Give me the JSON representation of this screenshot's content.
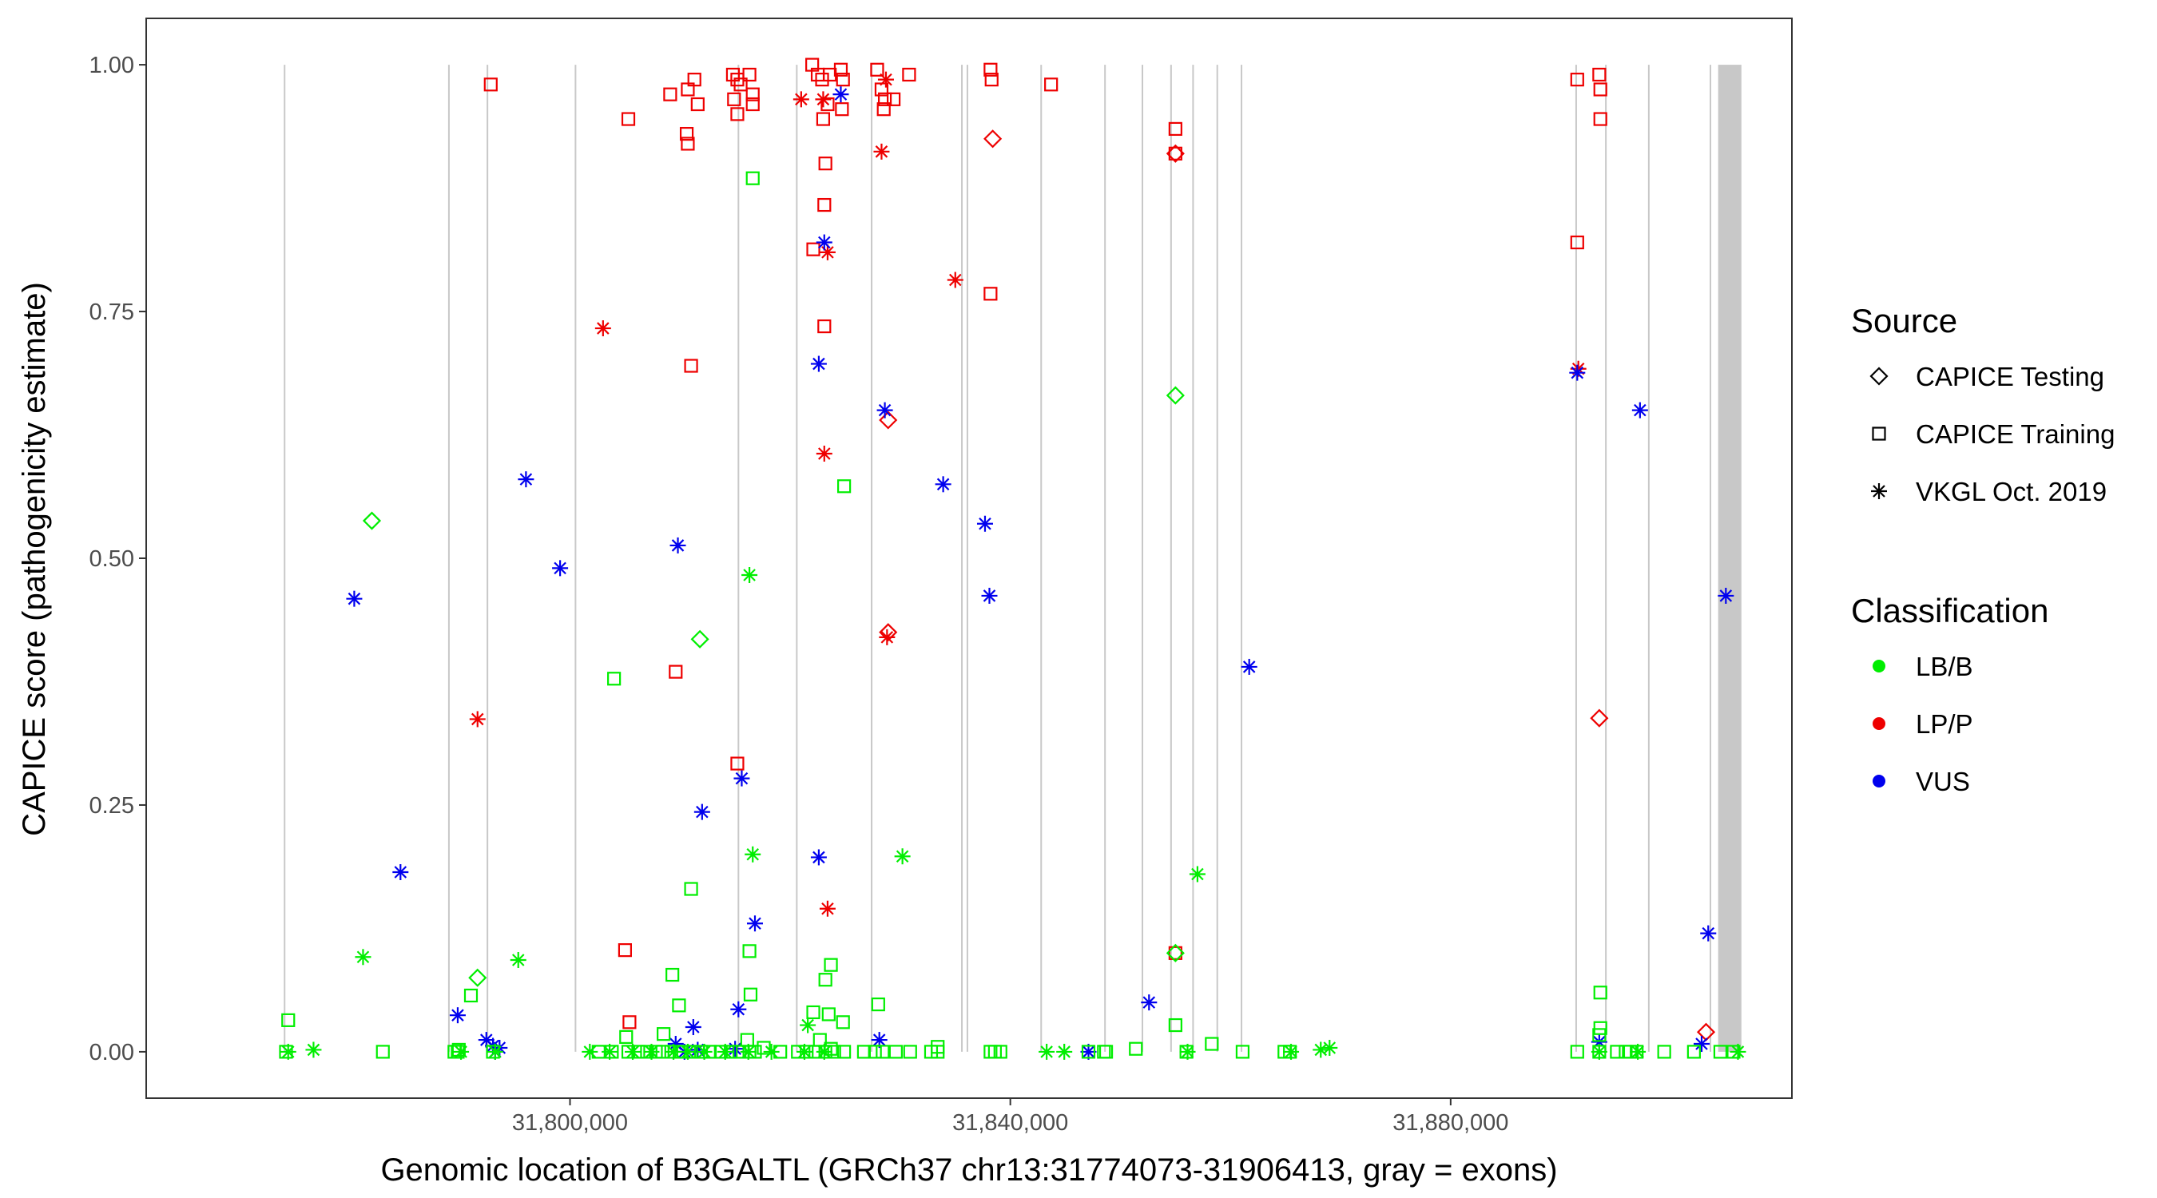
{
  "chart_data": {
    "type": "scatter",
    "xlabel": "Genomic location of B3GALTL (GRCh37 chr13:31774073-31906413, gray = exons)",
    "ylabel": "CAPICE score (pathogenicity estimate)",
    "xlim": [
      31761500,
      31911000
    ],
    "ylim": [
      -0.047,
      1.047
    ],
    "x_ticks": [
      31800000,
      31840000,
      31880000
    ],
    "x_tick_labels": [
      "31,800,000",
      "31,840,000",
      "31,880,000"
    ],
    "y_ticks": [
      0,
      0.25,
      0.5,
      0.75,
      1.0
    ],
    "y_tick_labels": [
      "0.00",
      "0.25",
      "0.50",
      "0.75",
      "1.00"
    ],
    "grid": false,
    "legend_placement": "right",
    "exons": [
      31774073,
      31789000,
      31792500,
      31800500,
      31815300,
      31820600,
      31827400,
      31835600,
      31836100,
      31842800,
      31848600,
      31852000,
      31854600,
      31856600,
      31858800,
      31861000,
      31891400,
      31894100,
      31898000,
      31903600
    ],
    "exon_block": [
      31904300,
      31906413
    ],
    "legends": {
      "source": {
        "title": "Source",
        "entries": [
          {
            "key": "testing",
            "label": "CAPICE Testing",
            "shape": "diamond"
          },
          {
            "key": "training",
            "label": "CAPICE Training",
            "shape": "square"
          },
          {
            "key": "vkgl",
            "label": "VKGL Oct. 2019",
            "shape": "asterisk"
          }
        ]
      },
      "classification": {
        "title": "Classification",
        "entries": [
          {
            "key": "LB/B",
            "label": "LB/B",
            "color": "#00ee00"
          },
          {
            "key": "LP/P",
            "label": "LP/P",
            "color": "#ee0000"
          },
          {
            "key": "VUS",
            "label": "VUS",
            "color": "#0000ee"
          }
        ]
      }
    },
    "series": [
      {
        "source": "training",
        "class": "LP/P",
        "points": [
          [
            31792800,
            0.98
          ],
          [
            31805300,
            0.945
          ],
          [
            31809100,
            0.97
          ],
          [
            31810700,
            0.975
          ],
          [
            31810600,
            0.93
          ],
          [
            31810700,
            0.92
          ],
          [
            31811300,
            0.985
          ],
          [
            31811600,
            0.96
          ],
          [
            31814800,
            0.99
          ],
          [
            31815200,
            0.985
          ],
          [
            31814900,
            0.965
          ],
          [
            31815200,
            0.95
          ],
          [
            31815500,
            0.98
          ],
          [
            31816300,
            0.99
          ],
          [
            31816600,
            0.96
          ],
          [
            31816600,
            0.97
          ],
          [
            31822000,
            1.0
          ],
          [
            31822500,
            0.99
          ],
          [
            31822900,
            0.985
          ],
          [
            31823600,
            0.99
          ],
          [
            31823000,
            0.945
          ],
          [
            31823400,
            0.96
          ],
          [
            31824600,
            0.995
          ],
          [
            31824800,
            0.985
          ],
          [
            31824700,
            0.955
          ],
          [
            31827900,
            0.995
          ],
          [
            31828300,
            0.975
          ],
          [
            31828600,
            0.965
          ],
          [
            31828500,
            0.955
          ],
          [
            31829400,
            0.965
          ],
          [
            31830800,
            0.99
          ],
          [
            31838200,
            0.995
          ],
          [
            31838300,
            0.985
          ],
          [
            31843700,
            0.98
          ],
          [
            31855000,
            0.935
          ],
          [
            31855000,
            0.91
          ],
          [
            31891500,
            0.985
          ],
          [
            31893500,
            0.99
          ],
          [
            31893600,
            0.975
          ],
          [
            31893600,
            0.945
          ],
          [
            31823200,
            0.9
          ],
          [
            31823100,
            0.858
          ],
          [
            31822100,
            0.813
          ],
          [
            31823100,
            0.735
          ],
          [
            31838200,
            0.768
          ],
          [
            31811000,
            0.695
          ],
          [
            31891500,
            0.82
          ],
          [
            31809600,
            0.385
          ],
          [
            31815200,
            0.292
          ],
          [
            31805000,
            0.103
          ],
          [
            31805400,
            0.03
          ],
          [
            31855000,
            0.1
          ]
        ]
      },
      {
        "source": "testing",
        "class": "LP/P",
        "points": [
          [
            31838400,
            0.925
          ],
          [
            31855000,
            0.91
          ],
          [
            31828900,
            0.64
          ],
          [
            31828900,
            0.425
          ],
          [
            31893500,
            0.338
          ],
          [
            31903200,
            0.02
          ]
        ]
      },
      {
        "source": "vkgl",
        "class": "LP/P",
        "points": [
          [
            31821000,
            0.965
          ],
          [
            31823000,
            0.965
          ],
          [
            31828300,
            0.912
          ],
          [
            31828700,
            0.985
          ],
          [
            31823400,
            0.81
          ],
          [
            31835000,
            0.782
          ],
          [
            31803000,
            0.733
          ],
          [
            31823100,
            0.606
          ],
          [
            31828800,
            0.42
          ],
          [
            31791600,
            0.337
          ],
          [
            31823400,
            0.145
          ],
          [
            31891600,
            0.692
          ]
        ]
      },
      {
        "source": "vkgl",
        "class": "VUS",
        "points": [
          [
            31824600,
            0.97
          ],
          [
            31823100,
            0.82
          ],
          [
            31822600,
            0.697
          ],
          [
            31828600,
            0.65
          ],
          [
            31833900,
            0.575
          ],
          [
            31837700,
            0.535
          ],
          [
            31838100,
            0.462
          ],
          [
            31796000,
            0.58
          ],
          [
            31809800,
            0.513
          ],
          [
            31799100,
            0.49
          ],
          [
            31780400,
            0.459
          ],
          [
            31861700,
            0.39
          ],
          [
            31891500,
            0.688
          ],
          [
            31897200,
            0.65
          ],
          [
            31905000,
            0.462
          ],
          [
            31815600,
            0.277
          ],
          [
            31812000,
            0.243
          ],
          [
            31822600,
            0.197
          ],
          [
            31784600,
            0.182
          ],
          [
            31816800,
            0.13
          ],
          [
            31903400,
            0.12
          ],
          [
            31852600,
            0.05
          ],
          [
            31815300,
            0.043
          ],
          [
            31789800,
            0.037
          ],
          [
            31811200,
            0.025
          ],
          [
            31828100,
            0.012
          ],
          [
            31809600,
            0.008
          ],
          [
            31792400,
            0.012
          ],
          [
            31793000,
            0.006
          ],
          [
            31793600,
            0.004
          ],
          [
            31815000,
            0.003
          ],
          [
            31811600,
            0.002
          ],
          [
            31902800,
            0.008
          ],
          [
            31893500,
            0.01
          ],
          [
            31847100,
            0.0
          ],
          [
            31793200,
            0.0
          ],
          [
            31810400,
            0.0
          ]
        ]
      },
      {
        "source": "training",
        "class": "LB/B",
        "points": [
          [
            31816600,
            0.885
          ],
          [
            31824900,
            0.573
          ],
          [
            31804000,
            0.378
          ],
          [
            31811000,
            0.165
          ],
          [
            31816300,
            0.102
          ],
          [
            31823700,
            0.088
          ],
          [
            31809300,
            0.078
          ],
          [
            31823200,
            0.073
          ],
          [
            31791000,
            0.057
          ],
          [
            31816400,
            0.058
          ],
          [
            31893600,
            0.06
          ],
          [
            31809900,
            0.047
          ],
          [
            31828000,
            0.048
          ],
          [
            31822100,
            0.04
          ],
          [
            31774400,
            0.032
          ],
          [
            31823500,
            0.038
          ],
          [
            31824800,
            0.03
          ],
          [
            31855000,
            0.027
          ],
          [
            31893600,
            0.024
          ],
          [
            31893500,
            0.017
          ],
          [
            31808500,
            0.018
          ],
          [
            31816100,
            0.012
          ],
          [
            31805100,
            0.015
          ],
          [
            31822700,
            0.012
          ],
          [
            31858300,
            0.008
          ],
          [
            31817600,
            0.004
          ],
          [
            31823700,
            0.003
          ],
          [
            31833400,
            0.005
          ],
          [
            31851400,
            0.003
          ],
          [
            31774200,
            0.0
          ],
          [
            31783000,
            0.0
          ],
          [
            31789800,
            0.0
          ],
          [
            31789900,
            0.002
          ],
          [
            31789500,
            0.0
          ],
          [
            31793000,
            0.0
          ],
          [
            31802600,
            0.0
          ],
          [
            31803800,
            0.0
          ],
          [
            31805300,
            0.0
          ],
          [
            31806200,
            0.0
          ],
          [
            31807000,
            0.0
          ],
          [
            31807800,
            0.0
          ],
          [
            31808400,
            0.0
          ],
          [
            31809200,
            0.0
          ],
          [
            31810100,
            0.0
          ],
          [
            31811000,
            0.0
          ],
          [
            31811900,
            0.0
          ],
          [
            31812700,
            0.0
          ],
          [
            31813700,
            0.0
          ],
          [
            31814600,
            0.0
          ],
          [
            31815400,
            0.0
          ],
          [
            31816300,
            0.0
          ],
          [
            31816800,
            0.0
          ],
          [
            31819100,
            0.0
          ],
          [
            31820700,
            0.0
          ],
          [
            31821500,
            0.0
          ],
          [
            31822300,
            0.0
          ],
          [
            31823200,
            0.0
          ],
          [
            31824000,
            0.0
          ],
          [
            31824900,
            0.0
          ],
          [
            31826700,
            0.0
          ],
          [
            31827700,
            0.0
          ],
          [
            31828400,
            0.0
          ],
          [
            31829600,
            0.0
          ],
          [
            31830900,
            0.0
          ],
          [
            31832800,
            0.0
          ],
          [
            31833400,
            0.0
          ],
          [
            31838200,
            0.0
          ],
          [
            31838600,
            0.0
          ],
          [
            31839100,
            0.0
          ],
          [
            31847100,
            0.0
          ],
          [
            31848500,
            0.0
          ],
          [
            31848700,
            0.0
          ],
          [
            31856000,
            0.0
          ],
          [
            31861100,
            0.0
          ],
          [
            31864900,
            0.0
          ],
          [
            31865400,
            0.0
          ],
          [
            31891500,
            0.0
          ],
          [
            31893500,
            0.0
          ],
          [
            31895100,
            0.0
          ],
          [
            31895900,
            0.0
          ],
          [
            31896300,
            0.0
          ],
          [
            31896900,
            0.0
          ],
          [
            31899400,
            0.0
          ],
          [
            31902100,
            0.0
          ],
          [
            31904500,
            0.0
          ],
          [
            31905700,
            0.0
          ]
        ]
      },
      {
        "source": "testing",
        "class": "LB/B",
        "points": [
          [
            31855000,
            0.665
          ],
          [
            31782000,
            0.538
          ],
          [
            31811800,
            0.418
          ],
          [
            31791600,
            0.075
          ],
          [
            31855000,
            0.1
          ]
        ]
      },
      {
        "source": "vkgl",
        "class": "LB/B",
        "points": [
          [
            31816300,
            0.483
          ],
          [
            31816600,
            0.2
          ],
          [
            31830200,
            0.198
          ],
          [
            31857000,
            0.18
          ],
          [
            31781200,
            0.096
          ],
          [
            31795300,
            0.093
          ],
          [
            31821600,
            0.027
          ],
          [
            31774400,
            0.0
          ],
          [
            31776700,
            0.002
          ],
          [
            31790100,
            0.0
          ],
          [
            31793200,
            0.0
          ],
          [
            31801800,
            0.0
          ],
          [
            31803600,
            0.0
          ],
          [
            31805700,
            0.0
          ],
          [
            31807400,
            0.0
          ],
          [
            31809400,
            0.0
          ],
          [
            31810700,
            0.0
          ],
          [
            31812200,
            0.0
          ],
          [
            31814100,
            0.0
          ],
          [
            31816200,
            0.0
          ],
          [
            31818300,
            0.0
          ],
          [
            31821300,
            0.0
          ],
          [
            31823100,
            0.0
          ],
          [
            31843300,
            0.0
          ],
          [
            31844900,
            0.0
          ],
          [
            31856100,
            0.0
          ],
          [
            31865500,
            0.0
          ],
          [
            31868200,
            0.002
          ],
          [
            31869000,
            0.004
          ],
          [
            31893500,
            0.0
          ],
          [
            31897000,
            0.0
          ],
          [
            31906100,
            0.0
          ]
        ]
      }
    ]
  }
}
